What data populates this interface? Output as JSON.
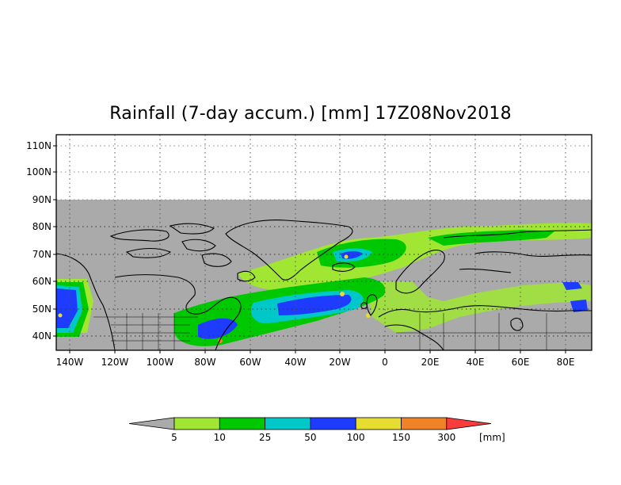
{
  "title": "Rainfall (7-day accum.) [mm] 17Z08Nov2018",
  "map": {
    "lat_ticks": [
      "110N",
      "100N",
      "90N",
      "80N",
      "70N",
      "60N",
      "50N",
      "40N"
    ],
    "lon_ticks": [
      "140W",
      "120W",
      "100W",
      "80W",
      "60W",
      "40W",
      "20W",
      "0",
      "20E",
      "40E",
      "60E",
      "80E"
    ],
    "no_data_color": "#aaaaaa",
    "coastline_color": "#000000"
  },
  "legend": {
    "unit": "[mm]",
    "thresholds": [
      "5",
      "10",
      "25",
      "50",
      "100",
      "150",
      "300"
    ],
    "colors": [
      "#aaaaaa",
      "#a0e632",
      "#00c800",
      "#00c8c8",
      "#1e3cff",
      "#e6dc32",
      "#f08228",
      "#fa3c3c"
    ]
  }
}
